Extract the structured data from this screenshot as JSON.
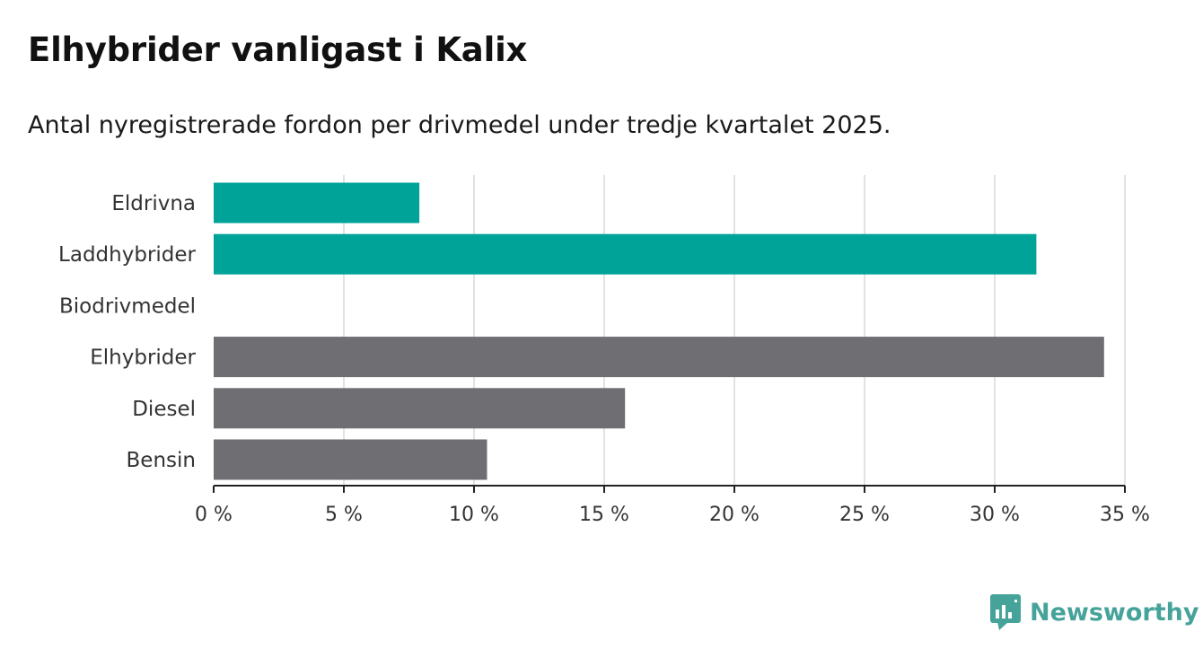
{
  "title": "Elhybrider vanligast i Kalix",
  "subtitle": "Antal nyregistrerade fordon per drivmedel under tredje kvartalet 2025.",
  "brand": {
    "name": "Newsworthy",
    "icon": "newsworthy-logo-icon"
  },
  "colors": {
    "highlight": "#00a398",
    "default": "#6e6e73",
    "grid": "#d9d9d9",
    "axis": "#222222"
  },
  "chart_data": {
    "type": "bar",
    "orientation": "horizontal",
    "categories": [
      "Eldrivna",
      "Laddhybrider",
      "Biodrivmedel",
      "Elhybrider",
      "Diesel",
      "Bensin"
    ],
    "values": [
      7.9,
      31.6,
      0,
      34.2,
      15.8,
      10.5
    ],
    "highlight": [
      true,
      true,
      false,
      false,
      false,
      false
    ],
    "unit": "%",
    "xlim": [
      0,
      35
    ],
    "ticks": [
      0,
      5,
      10,
      15,
      20,
      25,
      30,
      35
    ],
    "tick_labels": [
      "0 %",
      "5 %",
      "10 %",
      "15 %",
      "20 %",
      "25 %",
      "30 %",
      "35 %"
    ],
    "grid": true
  }
}
